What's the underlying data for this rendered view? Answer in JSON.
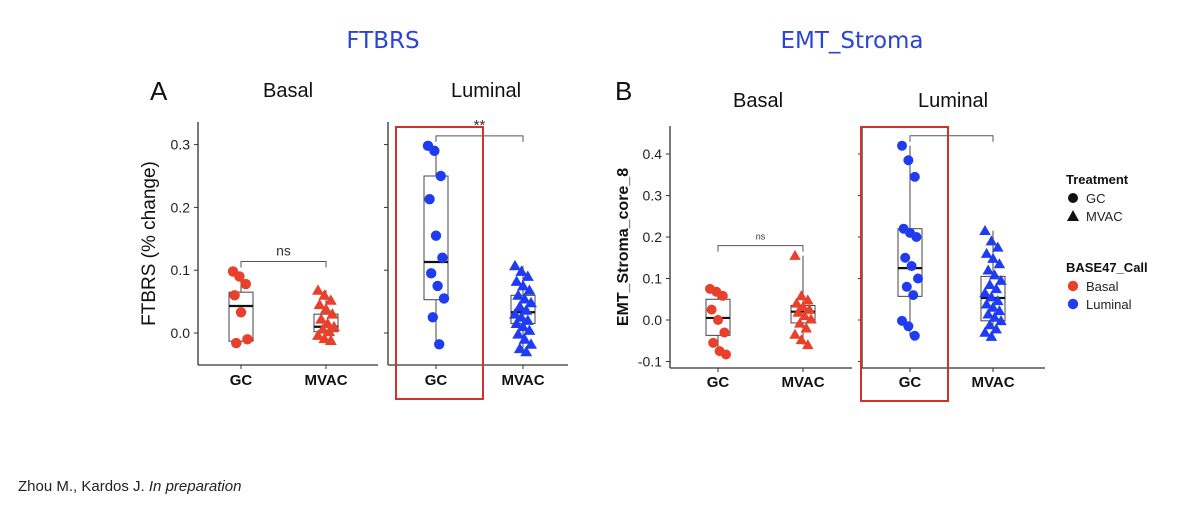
{
  "citation": {
    "authors": "Zhou M., Kardos J.",
    "status": "In preparation"
  },
  "legend": {
    "treatment_title": "Treatment",
    "treatment_items": [
      {
        "label": "GC",
        "shape": "circle"
      },
      {
        "label": "MVAC",
        "shape": "triangle"
      }
    ],
    "call_title": "BASE47_Call",
    "call_items": [
      {
        "label": "Basal",
        "color": "#e8402a"
      },
      {
        "label": "Luminal",
        "color": "#1f3cf0"
      }
    ]
  },
  "colors": {
    "basal": "#e8402a",
    "luminal": "#1f3cf0",
    "title": "#2a45d6",
    "highlight": "#d2322d"
  },
  "chart_data": [
    {
      "type": "box",
      "panel_label": "A",
      "title": "FTBRS",
      "ylabel": "FTBRS (% change)",
      "ylim": [
        -0.045,
        0.335
      ],
      "yticks": [
        0.0,
        0.1,
        0.2,
        0.3
      ],
      "ytick_labels": [
        "0.0",
        "0.1",
        "0.2",
        "0.3"
      ],
      "facets": [
        {
          "name": "Basal",
          "significance": "ns",
          "groups": [
            {
              "category": "GC",
              "call": "Basal",
              "shape": "circle",
              "box": {
                "q1": -0.013,
                "median": 0.043,
                "q3": 0.065,
                "min": -0.018,
                "max": 0.098
              },
              "points": [
                0.098,
                0.09,
                0.078,
                0.06,
                0.033,
                -0.01,
                -0.016
              ]
            },
            {
              "category": "MVAC",
              "call": "Basal",
              "shape": "triangle",
              "box": {
                "q1": 0.002,
                "median": 0.01,
                "q3": 0.03,
                "min": -0.012,
                "max": 0.068
              },
              "points": [
                0.068,
                0.06,
                0.052,
                0.045,
                0.038,
                0.03,
                0.022,
                0.015,
                0.01,
                0.006,
                0.002,
                -0.004,
                -0.009,
                -0.012
              ]
            }
          ]
        },
        {
          "name": "Luminal",
          "significance": "**",
          "highlight_category": "GC",
          "groups": [
            {
              "category": "GC",
              "call": "Luminal",
              "shape": "circle",
              "box": {
                "q1": 0.053,
                "median": 0.113,
                "q3": 0.25,
                "min": -0.018,
                "max": 0.298
              },
              "points": [
                0.298,
                0.29,
                0.25,
                0.213,
                0.155,
                0.12,
                0.095,
                0.075,
                0.055,
                0.025,
                -0.018
              ]
            },
            {
              "category": "MVAC",
              "call": "Luminal",
              "shape": "triangle",
              "box": {
                "q1": 0.015,
                "median": 0.033,
                "q3": 0.06,
                "min": -0.03,
                "max": 0.107
              },
              "points": [
                0.107,
                0.098,
                0.09,
                0.082,
                0.075,
                0.068,
                0.06,
                0.054,
                0.048,
                0.042,
                0.036,
                0.03,
                0.025,
                0.02,
                0.015,
                0.01,
                0.004,
                -0.002,
                -0.01,
                -0.018,
                -0.025,
                -0.03
              ]
            }
          ]
        }
      ]
    },
    {
      "type": "box",
      "panel_label": "B",
      "title": "EMT_Stroma",
      "ylabel": "EMT_Stroma_core_8",
      "ylim": [
        -0.105,
        0.46
      ],
      "yticks": [
        -0.1,
        0.0,
        0.1,
        0.2,
        0.3,
        0.4
      ],
      "ytick_labels": [
        "-0.1",
        "0.0",
        "0.1",
        "0.2",
        "0.3",
        "0.4"
      ],
      "facets": [
        {
          "name": "Basal",
          "significance": "ns",
          "groups": [
            {
              "category": "GC",
              "call": "Basal",
              "shape": "circle",
              "box": {
                "q1": -0.037,
                "median": 0.005,
                "q3": 0.05,
                "min": -0.083,
                "max": 0.075
              },
              "points": [
                0.075,
                0.068,
                0.058,
                0.025,
                0.0,
                -0.03,
                -0.055,
                -0.075,
                -0.083
              ]
            },
            {
              "category": "MVAC",
              "call": "Basal",
              "shape": "triangle",
              "box": {
                "q1": -0.007,
                "median": 0.02,
                "q3": 0.035,
                "min": -0.06,
                "max": 0.155
              },
              "points": [
                0.155,
                0.058,
                0.048,
                0.04,
                0.032,
                0.025,
                0.018,
                0.01,
                0.002,
                -0.008,
                -0.02,
                -0.035,
                -0.048,
                -0.06
              ]
            }
          ]
        },
        {
          "name": "Luminal",
          "significance": "",
          "highlight_category": "GC",
          "groups": [
            {
              "category": "GC",
              "call": "Luminal",
              "shape": "circle",
              "box": {
                "q1": 0.057,
                "median": 0.125,
                "q3": 0.22,
                "min": -0.038,
                "max": 0.42
              },
              "points": [
                0.42,
                0.385,
                0.345,
                0.22,
                0.21,
                0.2,
                0.15,
                0.13,
                0.1,
                0.08,
                0.06,
                -0.002,
                -0.015,
                -0.038
              ]
            },
            {
              "category": "MVAC",
              "call": "Luminal",
              "shape": "triangle",
              "box": {
                "q1": -0.002,
                "median": 0.053,
                "q3": 0.105,
                "min": -0.04,
                "max": 0.215
              },
              "points": [
                0.215,
                0.19,
                0.175,
                0.16,
                0.148,
                0.135,
                0.12,
                0.108,
                0.095,
                0.085,
                0.075,
                0.065,
                0.055,
                0.046,
                0.038,
                0.03,
                0.022,
                0.014,
                0.006,
                -0.002,
                -0.012,
                -0.022,
                -0.03,
                -0.04
              ]
            }
          ]
        }
      ]
    }
  ]
}
